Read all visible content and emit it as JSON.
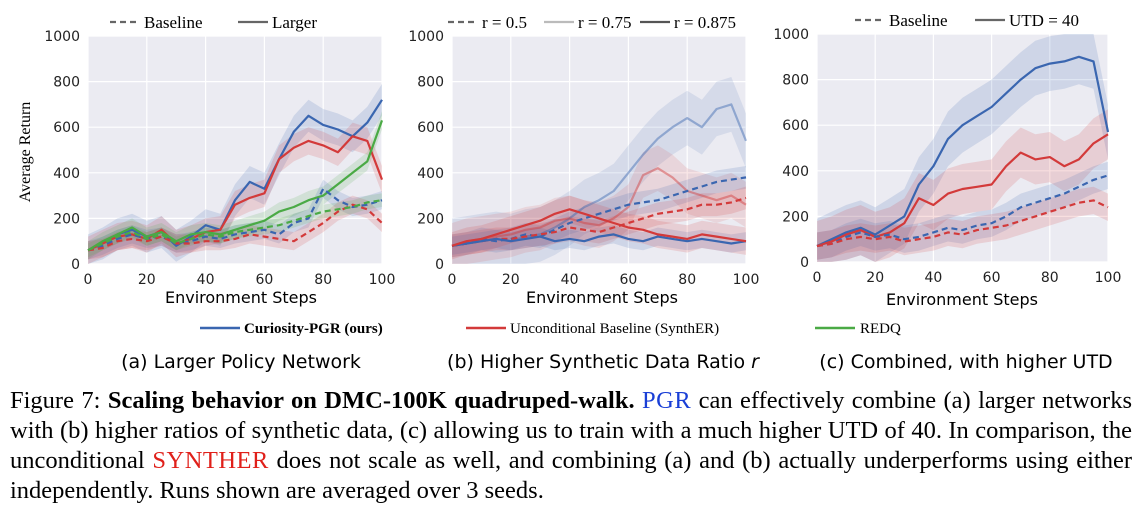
{
  "colors": {
    "pgr": "#3a66b0",
    "synther": "#d33a3a",
    "redq": "#4aaa45",
    "grid": "#ffffff",
    "panel_bg": "#ebebf2",
    "pgr_link": "#1a3fd6",
    "synther_link": "#e0201a"
  },
  "legend": {
    "pgr": "Curiosity-PGR (ours)",
    "synther": "Unconditional Baseline (SynthER)",
    "redq": "REDQ"
  },
  "panels": [
    {
      "key_items": [
        {
          "label": "Baseline",
          "style": "dashed",
          "shade": "#666666"
        },
        {
          "label": "Larger",
          "style": "solid",
          "shade": "#666666"
        }
      ],
      "subcaption": "(a) Larger Policy Network",
      "subcaption_italic": ""
    },
    {
      "key_items": [
        {
          "label": "r = 0.5",
          "style": "dashed",
          "shade": "#666666"
        },
        {
          "label": "r = 0.75",
          "style": "solid",
          "shade": "#bbbbbb"
        },
        {
          "label": "r = 0.875",
          "style": "solid",
          "shade": "#555555"
        }
      ],
      "subcaption": "(b) Higher Synthetic Data Ratio ",
      "subcaption_italic": "r"
    },
    {
      "key_items": [
        {
          "label": "Baseline",
          "style": "dashed",
          "shade": "#666666"
        },
        {
          "label": "UTD = 40",
          "style": "solid",
          "shade": "#666666"
        }
      ],
      "subcaption": "(c) Combined, with higher UTD",
      "subcaption_italic": ""
    }
  ],
  "caption": {
    "prefix": "Figure 7: ",
    "title": "Scaling behavior on DMC-100K quadruped-walk.",
    "pgr": "PGR",
    "part1": " can effectively combine (a) larger networks with (b) higher ratios of synthetic data, (c) allowing us to train with a much higher UTD of 40. In comparison, the unconditional ",
    "synther": "SYNTHER",
    "part2": " does not scale as well, and combining (a) and (b) actually underperforms using either independently. Runs shown are averaged over 3 seeds."
  },
  "chart_data": [
    {
      "type": "line",
      "title": "(a) Larger Policy Network",
      "xlabel": "Environment Steps",
      "ylabel": "Average Return",
      "xlim": [
        0,
        100
      ],
      "ylim": [
        0,
        1000
      ],
      "xticks": [
        0,
        20,
        40,
        60,
        80,
        100
      ],
      "yticks": [
        0,
        200,
        400,
        600,
        800,
        1000
      ],
      "x": [
        0,
        5,
        10,
        15,
        20,
        25,
        30,
        35,
        40,
        45,
        50,
        55,
        60,
        65,
        70,
        75,
        80,
        85,
        90,
        95,
        100
      ],
      "series": [
        {
          "name": "Curiosity-PGR (ours) - Larger",
          "color": "pgr",
          "dash": false,
          "band": 70,
          "values": [
            60,
            90,
            130,
            150,
            120,
            140,
            80,
            120,
            170,
            150,
            280,
            360,
            330,
            460,
            580,
            650,
            610,
            590,
            560,
            620,
            720
          ]
        },
        {
          "name": "Unconditional Baseline (SynthER) - Larger",
          "color": "synther",
          "dash": false,
          "band": 60,
          "values": [
            60,
            90,
            120,
            130,
            110,
            150,
            90,
            110,
            140,
            150,
            260,
            290,
            310,
            460,
            510,
            540,
            520,
            490,
            560,
            540,
            370
          ]
        },
        {
          "name": "REDQ - Larger",
          "color": "redq",
          "dash": false,
          "band": 40,
          "values": [
            60,
            100,
            130,
            160,
            120,
            140,
            100,
            130,
            140,
            130,
            150,
            170,
            190,
            230,
            250,
            280,
            300,
            350,
            400,
            450,
            630
          ]
        },
        {
          "name": "Curiosity-PGR (ours) - Baseline",
          "color": "pgr",
          "dash": true,
          "band": 40,
          "values": [
            60,
            80,
            110,
            130,
            110,
            120,
            90,
            100,
            120,
            110,
            130,
            140,
            150,
            130,
            180,
            200,
            330,
            280,
            250,
            260,
            280
          ]
        },
        {
          "name": "Unconditional Baseline (SynthER) - Baseline",
          "color": "synther",
          "dash": true,
          "band": 40,
          "values": [
            60,
            70,
            100,
            110,
            100,
            120,
            90,
            90,
            100,
            100,
            110,
            130,
            120,
            110,
            100,
            140,
            180,
            230,
            260,
            240,
            180
          ]
        },
        {
          "name": "REDQ - Baseline",
          "color": "redq",
          "dash": true,
          "band": 30,
          "values": [
            60,
            90,
            120,
            140,
            110,
            130,
            90,
            110,
            130,
            120,
            140,
            150,
            160,
            170,
            190,
            210,
            230,
            240,
            250,
            270,
            280
          ]
        }
      ]
    },
    {
      "type": "line",
      "title": "(b) Higher Synthetic Data Ratio r",
      "xlabel": "Environment Steps",
      "ylabel": "",
      "xlim": [
        0,
        100
      ],
      "ylim": [
        0,
        1000
      ],
      "xticks": [
        0,
        20,
        40,
        60,
        80,
        100
      ],
      "yticks": [
        0,
        200,
        400,
        600,
        800,
        1000
      ],
      "x": [
        0,
        5,
        10,
        15,
        20,
        25,
        30,
        35,
        40,
        45,
        50,
        55,
        60,
        65,
        70,
        75,
        80,
        85,
        90,
        95,
        100
      ],
      "series": [
        {
          "name": "Curiosity-PGR (ours) - r = 0.75",
          "color": "pgr",
          "dash": false,
          "light": true,
          "band": 120,
          "values": [
            80,
            90,
            100,
            110,
            100,
            120,
            130,
            160,
            200,
            250,
            280,
            320,
            400,
            480,
            550,
            600,
            640,
            600,
            680,
            700,
            540
          ]
        },
        {
          "name": "Unconditional Baseline (SynthER) - r = 0.75",
          "color": "synther",
          "dash": false,
          "light": true,
          "band": 100,
          "values": [
            80,
            100,
            110,
            120,
            130,
            150,
            160,
            190,
            200,
            180,
            170,
            200,
            250,
            390,
            420,
            380,
            320,
            300,
            280,
            300,
            260
          ]
        },
        {
          "name": "Curiosity-PGR (ours) - r = 0.5",
          "color": "pgr",
          "dash": true,
          "band": 50,
          "values": [
            80,
            90,
            110,
            100,
            110,
            130,
            120,
            150,
            180,
            200,
            220,
            240,
            260,
            270,
            280,
            300,
            320,
            340,
            360,
            370,
            380
          ]
        },
        {
          "name": "Unconditional Baseline (SynthER) - r = 0.5",
          "color": "synther",
          "dash": true,
          "band": 50,
          "values": [
            80,
            90,
            100,
            110,
            110,
            120,
            130,
            140,
            160,
            150,
            140,
            160,
            180,
            200,
            220,
            230,
            240,
            260,
            260,
            270,
            290
          ]
        },
        {
          "name": "Curiosity-PGR (ours) - r = 0.875",
          "color": "pgr",
          "dash": false,
          "band": 40,
          "values": [
            80,
            90,
            100,
            110,
            100,
            110,
            120,
            100,
            110,
            100,
            120,
            130,
            110,
            100,
            120,
            110,
            100,
            110,
            100,
            90,
            100
          ]
        },
        {
          "name": "Unconditional Baseline (SynthER) - r = 0.875",
          "color": "synther",
          "dash": false,
          "band": 60,
          "values": [
            80,
            100,
            110,
            130,
            150,
            170,
            190,
            220,
            240,
            220,
            200,
            180,
            160,
            150,
            130,
            120,
            110,
            130,
            120,
            110,
            100
          ]
        }
      ]
    },
    {
      "type": "line",
      "title": "(c) Combined, with higher UTD",
      "xlabel": "Environment Steps",
      "ylabel": "",
      "xlim": [
        0,
        100
      ],
      "ylim": [
        0,
        1000
      ],
      "xticks": [
        0,
        20,
        40,
        60,
        80,
        100
      ],
      "yticks": [
        0,
        200,
        400,
        600,
        800,
        1000
      ],
      "x": [
        0,
        5,
        10,
        15,
        20,
        25,
        30,
        35,
        40,
        45,
        50,
        55,
        60,
        65,
        70,
        75,
        80,
        85,
        90,
        95,
        100
      ],
      "series": [
        {
          "name": "Curiosity-PGR (ours) - UTD = 40",
          "color": "pgr",
          "dash": false,
          "band": 120,
          "values": [
            70,
            100,
            130,
            150,
            120,
            160,
            200,
            340,
            420,
            540,
            600,
            640,
            680,
            740,
            800,
            850,
            870,
            880,
            900,
            880,
            570
          ]
        },
        {
          "name": "Unconditional Baseline (SynthER) - UTD = 40",
          "color": "synther",
          "dash": false,
          "band": 110,
          "values": [
            70,
            90,
            120,
            140,
            110,
            130,
            170,
            280,
            250,
            300,
            320,
            330,
            340,
            420,
            480,
            450,
            460,
            420,
            450,
            520,
            560
          ]
        },
        {
          "name": "Curiosity-PGR (ours) - Baseline",
          "color": "pgr",
          "dash": true,
          "band": 60,
          "values": [
            70,
            80,
            110,
            130,
            110,
            120,
            100,
            110,
            130,
            150,
            140,
            160,
            170,
            200,
            240,
            260,
            280,
            300,
            330,
            360,
            380
          ]
        },
        {
          "name": "Unconditional Baseline (SynthER) - Baseline",
          "color": "synther",
          "dash": true,
          "band": 60,
          "values": [
            70,
            80,
            100,
            110,
            100,
            110,
            90,
            100,
            110,
            130,
            120,
            140,
            150,
            160,
            180,
            200,
            220,
            240,
            260,
            270,
            240
          ]
        }
      ]
    }
  ]
}
